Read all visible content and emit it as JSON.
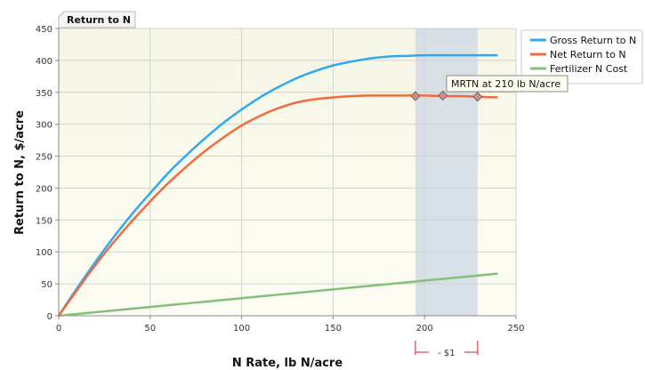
{
  "chart_data": {
    "type": "line",
    "tab_title": "Return to N",
    "xlabel": "N Rate, lb N/acre",
    "ylabel": "Return to N, $/acre",
    "xlim": [
      0,
      250
    ],
    "ylim": [
      0,
      450
    ],
    "x_ticks": [
      0,
      50,
      100,
      150,
      200,
      250
    ],
    "y_ticks": [
      0,
      50,
      100,
      150,
      200,
      250,
      300,
      350,
      400,
      450
    ],
    "grid": true,
    "legend_position": "top-right",
    "x": [
      0,
      10,
      20,
      30,
      40,
      50,
      60,
      70,
      80,
      90,
      100,
      110,
      120,
      130,
      140,
      150,
      160,
      170,
      180,
      190,
      200,
      210,
      220,
      230,
      240
    ],
    "series": [
      {
        "name": "Gross Return to N",
        "color": "#2ea8f0",
        "values": [
          0,
          43,
          84,
          123,
          159,
          192,
          224,
          252,
          278,
          302,
          323,
          342,
          358,
          372,
          383,
          392,
          398,
          403,
          406,
          407,
          408,
          408,
          408,
          408,
          408
        ]
      },
      {
        "name": "Net Return to N",
        "color": "#f06c3c",
        "values": [
          0,
          40,
          79,
          115,
          148,
          179,
          208,
          234,
          258,
          279,
          298,
          313,
          325,
          334,
          339,
          342,
          344,
          345,
          345,
          345,
          345,
          344,
          344,
          343,
          342
        ]
      },
      {
        "name": "Fertilizer N Cost",
        "color": "#84c07a",
        "values": [
          0,
          2.75,
          5.5,
          8.25,
          11,
          13.75,
          16.5,
          19.25,
          22,
          24.75,
          27.5,
          30.25,
          33,
          35.75,
          38.5,
          41.25,
          44,
          46.75,
          49.5,
          52.25,
          55,
          57.75,
          60.5,
          63.25,
          66
        ]
      }
    ],
    "profitable_range": {
      "x_start": 195,
      "x_end": 229,
      "label": "- $1",
      "band_color": "#d4dde6",
      "markers": [
        {
          "x": 195,
          "y": 344
        },
        {
          "x": 210,
          "y": 345
        },
        {
          "x": 229,
          "y": 343
        }
      ]
    },
    "tooltip": "MRTN at 210 lb N/acre"
  }
}
